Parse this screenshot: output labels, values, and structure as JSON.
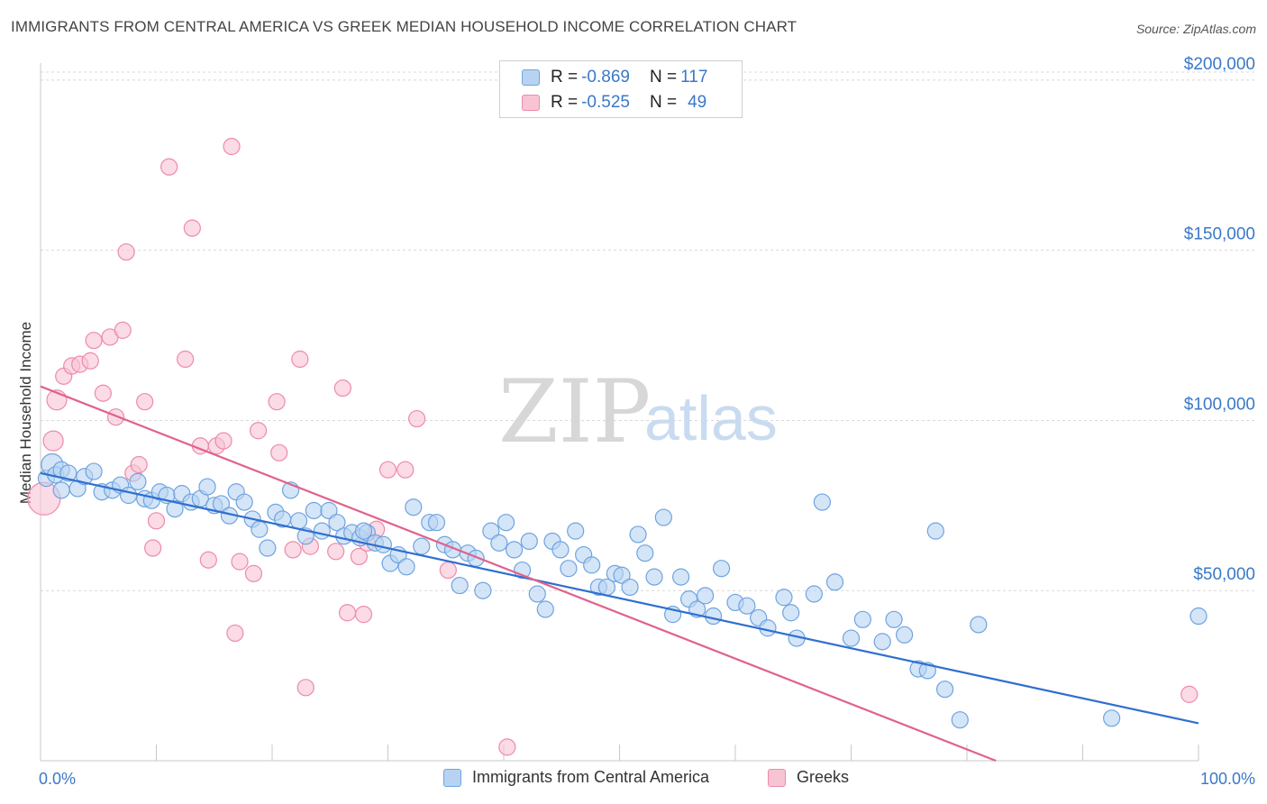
{
  "title": "IMMIGRANTS FROM CENTRAL AMERICA VS GREEK MEDIAN HOUSEHOLD INCOME CORRELATION CHART",
  "source": "Source: ZipAtlas.com",
  "watermark": {
    "zip": "ZIP",
    "atlas": "atlas"
  },
  "legend": {
    "series1": {
      "r_label": "R = ",
      "r_value": "-0.869",
      "n_label": "N = ",
      "n_value": "117",
      "color": "#b8d3f2"
    },
    "series2": {
      "r_label": "R = ",
      "r_value": "-0.525",
      "n_label": "N = ",
      "n_value": "49",
      "color": "#f8c3d3"
    }
  },
  "bottom_legend": {
    "series1_label": "Immigrants from Central America",
    "series2_label": "Greeks"
  },
  "chart_data": {
    "type": "scatter",
    "title": "IMMIGRANTS FROM CENTRAL AMERICA VS GREEK MEDIAN HOUSEHOLD INCOME CORRELATION CHART",
    "xlabel": "",
    "ylabel": "Median Household Income",
    "xlim": [
      0,
      100
    ],
    "ylim": [
      0,
      205000
    ],
    "x_tick_labels": [
      "0.0%",
      "100.0%"
    ],
    "y_ticks": [
      50000,
      100000,
      150000,
      200000
    ],
    "y_tick_labels": [
      "$50,000",
      "$100,000",
      "$150,000",
      "$200,000"
    ],
    "grid": "horizontal dashed",
    "legend_position": "top-center",
    "series": [
      {
        "name": "Immigrants from Central America",
        "color": "#6fa3e0",
        "fill": "#b8d3f2",
        "trend": {
          "x": [
            0,
            100
          ],
          "y": [
            84500,
            11000
          ],
          "color": "#2f6fcf"
        },
        "points": [
          [
            0.5,
            83000
          ],
          [
            1.0,
            87000
          ],
          [
            1.3,
            84000
          ],
          [
            1.8,
            85500
          ],
          [
            2.4,
            84500
          ],
          [
            3.2,
            80000
          ],
          [
            3.8,
            83500
          ],
          [
            4.6,
            85000
          ],
          [
            5.3,
            79000
          ],
          [
            6.2,
            79500
          ],
          [
            6.9,
            81000
          ],
          [
            7.6,
            78000
          ],
          [
            8.4,
            82000
          ],
          [
            9.0,
            77000
          ],
          [
            9.6,
            76500
          ],
          [
            10.3,
            79000
          ],
          [
            10.9,
            78000
          ],
          [
            11.6,
            74000
          ],
          [
            12.2,
            78500
          ],
          [
            13.0,
            76000
          ],
          [
            13.8,
            77000
          ],
          [
            14.4,
            80500
          ],
          [
            15.0,
            75000
          ],
          [
            15.6,
            75500
          ],
          [
            16.3,
            72000
          ],
          [
            16.9,
            79000
          ],
          [
            17.6,
            76000
          ],
          [
            18.3,
            71000
          ],
          [
            18.9,
            68000
          ],
          [
            19.6,
            62500
          ],
          [
            20.3,
            73000
          ],
          [
            20.9,
            71000
          ],
          [
            21.6,
            79500
          ],
          [
            22.3,
            70500
          ],
          [
            22.9,
            66000
          ],
          [
            23.6,
            73500
          ],
          [
            24.3,
            67500
          ],
          [
            24.9,
            73500
          ],
          [
            25.6,
            70000
          ],
          [
            26.2,
            66000
          ],
          [
            26.9,
            67000
          ],
          [
            27.6,
            65500
          ],
          [
            28.2,
            67000
          ],
          [
            28.9,
            64000
          ],
          [
            29.6,
            63500
          ],
          [
            30.2,
            58000
          ],
          [
            30.9,
            60500
          ],
          [
            31.6,
            57000
          ],
          [
            32.2,
            74500
          ],
          [
            32.9,
            63000
          ],
          [
            33.6,
            70000
          ],
          [
            34.2,
            70000
          ],
          [
            34.9,
            63500
          ],
          [
            35.6,
            62000
          ],
          [
            36.2,
            51500
          ],
          [
            36.9,
            61000
          ],
          [
            37.6,
            59500
          ],
          [
            38.2,
            50000
          ],
          [
            38.9,
            67500
          ],
          [
            39.6,
            64000
          ],
          [
            40.2,
            70000
          ],
          [
            40.9,
            62000
          ],
          [
            41.6,
            56000
          ],
          [
            42.2,
            64500
          ],
          [
            42.9,
            49000
          ],
          [
            43.6,
            44500
          ],
          [
            44.2,
            64500
          ],
          [
            44.9,
            62000
          ],
          [
            45.6,
            56500
          ],
          [
            46.2,
            67500
          ],
          [
            46.9,
            60500
          ],
          [
            47.6,
            57500
          ],
          [
            48.2,
            51000
          ],
          [
            48.9,
            51000
          ],
          [
            49.6,
            55000
          ],
          [
            50.2,
            54500
          ],
          [
            50.9,
            51000
          ],
          [
            51.6,
            66500
          ],
          [
            52.2,
            61000
          ],
          [
            53.0,
            54000
          ],
          [
            53.8,
            71500
          ],
          [
            54.6,
            43000
          ],
          [
            55.3,
            54000
          ],
          [
            56.0,
            47500
          ],
          [
            56.7,
            44500
          ],
          [
            57.4,
            48500
          ],
          [
            58.1,
            42500
          ],
          [
            58.8,
            56500
          ],
          [
            60.0,
            46500
          ],
          [
            61.0,
            45500
          ],
          [
            62.0,
            42000
          ],
          [
            62.8,
            39000
          ],
          [
            64.2,
            48000
          ],
          [
            64.8,
            43500
          ],
          [
            65.3,
            36000
          ],
          [
            66.8,
            49000
          ],
          [
            67.5,
            76000
          ],
          [
            68.6,
            52500
          ],
          [
            70.0,
            36000
          ],
          [
            71.0,
            41500
          ],
          [
            72.7,
            35000
          ],
          [
            73.7,
            41500
          ],
          [
            74.6,
            37000
          ],
          [
            75.8,
            27000
          ],
          [
            76.6,
            26500
          ],
          [
            77.3,
            67500
          ],
          [
            78.1,
            21000
          ],
          [
            79.4,
            12000
          ],
          [
            81.0,
            40000
          ],
          [
            92.5,
            12500
          ],
          [
            100.0,
            42500
          ],
          [
            1.8,
            79500
          ],
          [
            27.9,
            67500
          ]
        ]
      },
      {
        "name": "Greeks",
        "color": "#ee8aaa",
        "fill": "#f8c3d3",
        "trend": {
          "x": [
            0,
            82.5
          ],
          "y": [
            110000,
            0
          ],
          "color": "#e0628d"
        },
        "points": [
          [
            0.3,
            77000
          ],
          [
            1.1,
            94000
          ],
          [
            1.4,
            106000
          ],
          [
            2.0,
            113000
          ],
          [
            2.7,
            116000
          ],
          [
            3.4,
            116500
          ],
          [
            4.3,
            117500
          ],
          [
            4.6,
            123500
          ],
          [
            5.4,
            108000
          ],
          [
            6.0,
            124500
          ],
          [
            6.5,
            101000
          ],
          [
            7.1,
            126500
          ],
          [
            7.4,
            149500
          ],
          [
            8.0,
            84500
          ],
          [
            8.5,
            87000
          ],
          [
            9.0,
            105500
          ],
          [
            9.7,
            62500
          ],
          [
            10.0,
            70500
          ],
          [
            11.1,
            174500
          ],
          [
            12.5,
            118000
          ],
          [
            13.1,
            156500
          ],
          [
            13.8,
            92500
          ],
          [
            14.5,
            59000
          ],
          [
            15.2,
            92500
          ],
          [
            15.8,
            94000
          ],
          [
            16.5,
            180500
          ],
          [
            16.8,
            37500
          ],
          [
            17.2,
            58500
          ],
          [
            18.4,
            55000
          ],
          [
            18.8,
            97000
          ],
          [
            20.4,
            105500
          ],
          [
            20.6,
            90500
          ],
          [
            21.8,
            62000
          ],
          [
            22.4,
            118000
          ],
          [
            22.9,
            21500
          ],
          [
            23.3,
            63000
          ],
          [
            25.5,
            61500
          ],
          [
            26.1,
            109500
          ],
          [
            26.5,
            43500
          ],
          [
            27.5,
            60000
          ],
          [
            27.9,
            43000
          ],
          [
            28.2,
            64000
          ],
          [
            29.0,
            68000
          ],
          [
            30.0,
            85500
          ],
          [
            31.5,
            85500
          ],
          [
            32.5,
            100500
          ],
          [
            35.2,
            56000
          ],
          [
            40.3,
            4000
          ],
          [
            99.2,
            19500
          ]
        ]
      }
    ]
  }
}
